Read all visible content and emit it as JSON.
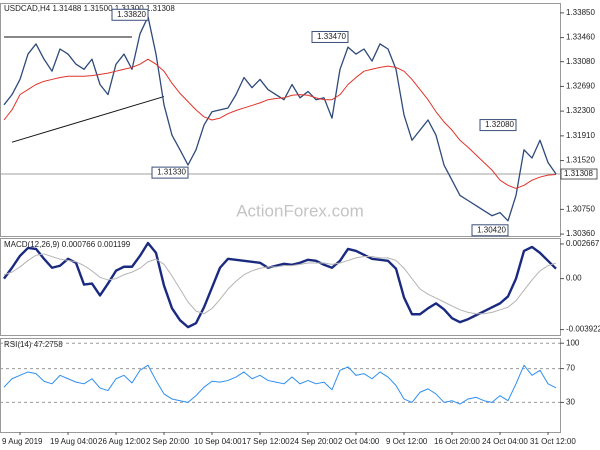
{
  "chart_data": [
    {
      "type": "line",
      "title": "USDCAD,H4 1.31488 1.31500 1.31300 1.31308",
      "watermark": "ActionForex.com",
      "series": [
        {
          "color": "#2e4a7a",
          "values": [
            1.324,
            1.3256,
            1.328,
            1.332,
            1.3336,
            1.3312,
            1.3293,
            1.3328,
            1.332,
            1.3304,
            1.3296,
            1.3312,
            1.3272,
            1.3256,
            1.3304,
            1.332,
            1.3296,
            1.3352,
            1.3379,
            1.332,
            1.324,
            1.3192,
            1.3169,
            1.3145,
            1.3169,
            1.3208,
            1.3229,
            1.3232,
            1.3235,
            1.3256,
            1.3283,
            1.3267,
            1.328,
            1.3264,
            1.3256,
            1.3248,
            1.3272,
            1.3251,
            1.3261,
            1.3248,
            1.3251,
            1.3219,
            1.3296,
            1.3331,
            1.332,
            1.3328,
            1.3309,
            1.3336,
            1.3328,
            1.3296,
            1.3224,
            1.3184,
            1.32,
            1.3216,
            1.3192,
            1.3145,
            1.3121,
            1.3097,
            1.3089,
            1.3081,
            1.3073,
            1.3065,
            1.307,
            1.3057,
            1.3097,
            1.3169,
            1.3156,
            1.3184,
            1.3149,
            1.31308
          ]
        },
        {
          "color": "#e0342a",
          "values": [
            1.3216,
            1.3232,
            1.3256,
            1.3264,
            1.3272,
            1.3277,
            1.328,
            1.3283,
            1.3285,
            1.3285,
            1.3285,
            1.3286,
            1.3288,
            1.329,
            1.3293,
            1.3296,
            1.3299,
            1.3304,
            1.3312,
            1.3304,
            1.3293,
            1.3274,
            1.3258,
            1.3245,
            1.3232,
            1.3221,
            1.3216,
            1.3219,
            1.3226,
            1.3231,
            1.3235,
            1.3239,
            1.3243,
            1.3248,
            1.325,
            1.3251,
            1.3255,
            1.3256,
            1.3255,
            1.3251,
            1.3248,
            1.3248,
            1.3256,
            1.3272,
            1.3283,
            1.3293,
            1.3296,
            1.3299,
            1.3301,
            1.3299,
            1.3293,
            1.328,
            1.3264,
            1.3248,
            1.3229,
            1.3213,
            1.32,
            1.3184,
            1.3173,
            1.3161,
            1.3149,
            1.3137,
            1.3121,
            1.3113,
            1.3108,
            1.3113,
            1.3121,
            1.3126,
            1.3129,
            1.313
          ]
        }
      ],
      "ylim": [
        1.3033,
        1.3399
      ],
      "yticks": [
        {
          "value": 1.3385,
          "label": "1.33850"
        },
        {
          "value": 1.3346,
          "label": "1.33460"
        },
        {
          "value": 1.3308,
          "label": "1.33080"
        },
        {
          "value": 1.3269,
          "label": "1.32690"
        },
        {
          "value": 1.323,
          "label": "1.32300"
        },
        {
          "value": 1.3191,
          "label": "1.31910"
        },
        {
          "value": 1.3152,
          "label": "1.31520"
        },
        {
          "value": 1.3075,
          "label": "1.30750"
        },
        {
          "value": 1.3036,
          "label": "1.30360"
        }
      ],
      "current_price": 1.31308,
      "annotations": [
        {
          "value": 1.3382,
          "label": "1.33820",
          "x": 18
        },
        {
          "value": 1.3347,
          "label": "1.33470",
          "x": 43
        },
        {
          "value": 1.3208,
          "label": "1.32080",
          "x": 64
        },
        {
          "value": 1.3133,
          "label": "1.31330",
          "x": 23
        },
        {
          "value": 1.3042,
          "label": "1.30420",
          "x": 63
        }
      ],
      "trendlines": [
        {
          "x": [
            0,
            16
          ],
          "y": [
            1.3347,
            1.3347
          ]
        },
        {
          "x": [
            1,
            20
          ],
          "y": [
            1.3181,
            1.3253
          ]
        }
      ]
    },
    {
      "type": "line",
      "title": "MACD(12,26,9) 0.000766 0.001199",
      "series": [
        {
          "color": "#1a2a80",
          "values": [
            0,
            0.000838,
            0.001753,
            0.002362,
            0.002286,
            0.001524,
            0.000838,
            0.000991,
            0.001524,
            0.001219,
            -0.000457,
            -0.000381,
            -0.001295,
            -0.000381,
            0.00061,
            0.000914,
            0.000914,
            0.001753,
            0.002743,
            0.001981,
            -0.000533,
            -0.002286,
            -0.0032,
            -0.003734,
            -0.003429,
            -0.00221,
            -0.000686,
            0.000838,
            0.001524,
            0.001448,
            0.001372,
            0.001295,
            0.001219,
            0.000838,
            0.000991,
            0.001143,
            0.001067,
            0.001219,
            0.001448,
            0.001372,
            0.001067,
            0.000838,
            0.001372,
            0.002286,
            0.002134,
            0.001829,
            0.001524,
            0.001448,
            0.001372,
            0.000762,
            -0.001448,
            -0.002743,
            -0.002743,
            -0.002286,
            -0.001905,
            -0.002362,
            -0.003048,
            -0.003353,
            -0.003124,
            -0.002819,
            -0.002515,
            -0.00221,
            -0.001905,
            -0.001372,
            0,
            0.002134,
            0.002438,
            0.001981,
            0.001372,
            0.000766
          ]
        },
        {
          "color": "#b4b4b4",
          "values": [
            0.0003,
            0.0005,
            0.0009,
            0.0014,
            0.0018,
            0.0019,
            0.0017,
            0.0015,
            0.0014,
            0.0013,
            0.001,
            0.0006,
            0.0001,
            -0.0001,
            0,
            0.0003,
            0.0005,
            0.0008,
            0.0013,
            0.0015,
            0.0011,
            0.0002,
            -0.0008,
            -0.0018,
            -0.0025,
            -0.0027,
            -0.0023,
            -0.0016,
            -0.0008,
            -0.0002,
            0.0003,
            0.0006,
            0.0008,
            0.0009,
            0.0009,
            0.001,
            0.001,
            0.0011,
            0.0012,
            0.0012,
            0.0012,
            0.0011,
            0.0012,
            0.0014,
            0.0016,
            0.0017,
            0.0017,
            0.0016,
            0.0016,
            0.0014,
            0.0008,
            0,
            -0.0008,
            -0.0012,
            -0.0015,
            -0.0018,
            -0.0021,
            -0.0024,
            -0.0026,
            -0.0027,
            -0.0027,
            -0.0026,
            -0.0024,
            -0.0022,
            -0.0017,
            -0.0009,
            -0.0001,
            0.0006,
            0.001,
            0.001199
          ]
        }
      ],
      "ylim": [
        -0.00434,
        0.00305
      ],
      "yticks": [
        0.002667,
        {
          "value": 0,
          "label": "0.00"
        },
        -0.003922
      ]
    },
    {
      "type": "line",
      "title": "RSI(14) 47.2758",
      "categories": [
        null,
        null,
        "9 Aug 2019",
        null,
        null,
        null,
        null,
        null,
        "19 Aug 04:00",
        null,
        null,
        null,
        null,
        null,
        "26 Aug 12:00",
        null,
        null,
        null,
        null,
        null,
        "2 Sep 20:00",
        null,
        null,
        null,
        null,
        null,
        "10 Sep 04:00",
        null,
        null,
        null,
        null,
        null,
        "17 Sep 12:00",
        null,
        null,
        null,
        null,
        null,
        "24 Sep 20:00",
        null,
        null,
        null,
        null,
        null,
        "2 Oct 04:00",
        null,
        null,
        null,
        null,
        null,
        "9 Oct 12:00",
        null,
        null,
        null,
        null,
        null,
        "16 Oct 20:00",
        null,
        null,
        null,
        null,
        null,
        "24 Oct 04:00",
        null,
        null,
        null,
        null,
        null,
        "31 Oct 12:00",
        null
      ],
      "series": [
        {
          "color": "#2f8ff0",
          "values": [
            48,
            58,
            62,
            66,
            64,
            55,
            52,
            62,
            58,
            54,
            52,
            58,
            47,
            44,
            58,
            62,
            53,
            68,
            74,
            56,
            40,
            34,
            32,
            30,
            38,
            48,
            55,
            54,
            56,
            60,
            66,
            58,
            62,
            56,
            54,
            52,
            60,
            52,
            56,
            52,
            54,
            45,
            68,
            72,
            62,
            64,
            58,
            66,
            60,
            50,
            34,
            30,
            42,
            46,
            40,
            30,
            32,
            28,
            34,
            36,
            32,
            30,
            38,
            32,
            52,
            74,
            62,
            68,
            52,
            47.2758
          ]
        }
      ],
      "ylim": [
        -5,
        105
      ],
      "yticks": [
        100,
        70,
        30
      ],
      "grid": true
    }
  ]
}
